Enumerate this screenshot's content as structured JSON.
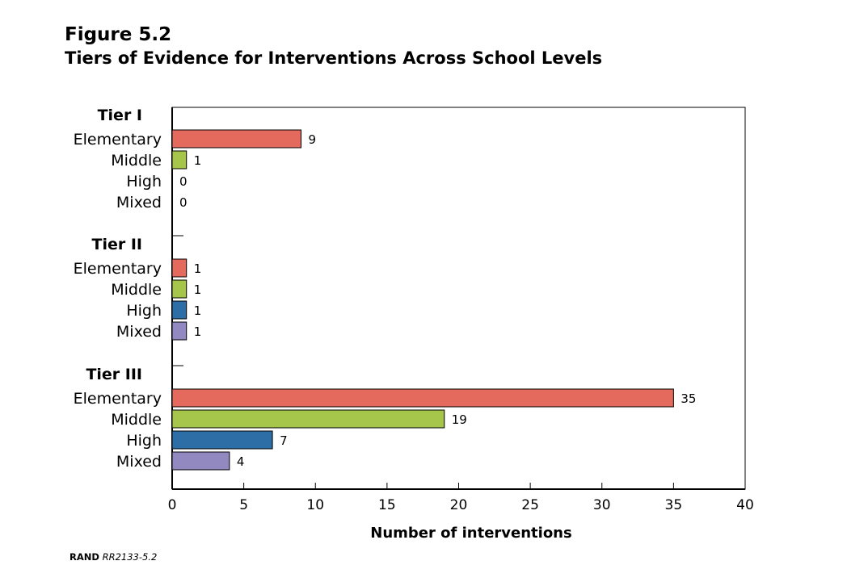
{
  "figure_label": "Figure 5.2",
  "title": "Tiers of Evidence for Interventions Across School Levels",
  "source_org": "RAND",
  "source_id": "RR2133-5.2",
  "chart_data": {
    "type": "bar",
    "orientation": "horizontal",
    "xlabel": "Number of interventions",
    "xlim": [
      0,
      40
    ],
    "xticks": [
      0,
      5,
      10,
      15,
      20,
      25,
      30,
      35,
      40
    ],
    "grid": false,
    "legend": "none",
    "level_colors": {
      "Elementary": "#e46a5d",
      "Middle": "#a5c64b",
      "High": "#2d6ea6",
      "Mixed": "#9189c0"
    },
    "groups": [
      {
        "name": "Tier I",
        "bars": [
          {
            "label": "Elementary",
            "value": 9
          },
          {
            "label": "Middle",
            "value": 1
          },
          {
            "label": "High",
            "value": 0
          },
          {
            "label": "Mixed",
            "value": 0
          }
        ]
      },
      {
        "name": "Tier II",
        "bars": [
          {
            "label": "Elementary",
            "value": 1
          },
          {
            "label": "Middle",
            "value": 1
          },
          {
            "label": "High",
            "value": 1
          },
          {
            "label": "Mixed",
            "value": 1
          }
        ]
      },
      {
        "name": "Tier III",
        "bars": [
          {
            "label": "Elementary",
            "value": 35
          },
          {
            "label": "Middle",
            "value": 19
          },
          {
            "label": "High",
            "value": 7
          },
          {
            "label": "Mixed",
            "value": 4
          }
        ]
      }
    ]
  }
}
